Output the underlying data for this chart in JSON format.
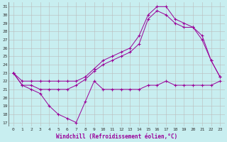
{
  "xlabel": "Windchill (Refroidissement éolien,°C)",
  "bg_color": "#c8eef0",
  "line_color": "#990099",
  "grid_color": "#bbbbbb",
  "xlim": [
    -0.5,
    23.5
  ],
  "ylim": [
    16.5,
    31.5
  ],
  "xticks": [
    0,
    1,
    2,
    3,
    4,
    5,
    6,
    7,
    8,
    9,
    10,
    11,
    12,
    13,
    14,
    15,
    16,
    17,
    18,
    19,
    20,
    21,
    22,
    23
  ],
  "yticks": [
    17,
    18,
    19,
    20,
    21,
    22,
    23,
    24,
    25,
    26,
    27,
    28,
    29,
    30,
    31
  ],
  "line1_x": [
    0,
    1,
    2,
    3,
    4,
    5,
    6,
    7,
    8,
    9,
    10,
    11,
    12,
    13,
    14,
    15,
    16,
    17,
    18,
    19,
    20,
    21,
    22,
    23
  ],
  "line1_y": [
    23,
    21.5,
    21,
    20.5,
    19,
    18,
    17.5,
    17,
    19.5,
    22,
    21,
    21,
    21,
    21,
    21,
    21.5,
    21.5,
    22,
    21.5,
    21.5,
    21.5,
    21.5,
    21.5,
    22
  ],
  "line2_x": [
    0,
    1,
    2,
    3,
    4,
    5,
    6,
    7,
    8,
    9,
    10,
    11,
    12,
    13,
    14,
    15,
    16,
    17,
    18,
    19,
    20,
    21,
    22,
    23
  ],
  "line2_y": [
    23,
    21.5,
    21.5,
    21,
    21,
    21,
    21,
    21.5,
    22.2,
    23.2,
    24,
    24.5,
    25,
    25.5,
    26.5,
    29.5,
    30.5,
    30,
    29,
    28.5,
    28.5,
    27,
    24.5,
    22.5
  ],
  "line3_x": [
    0,
    1,
    2,
    3,
    4,
    5,
    6,
    7,
    8,
    9,
    10,
    11,
    12,
    13,
    14,
    15,
    16,
    17,
    18,
    19,
    20,
    21,
    22,
    23
  ],
  "line3_y": [
    23,
    22,
    22,
    22,
    22,
    22,
    22,
    22,
    22.5,
    23.5,
    24.5,
    25,
    25.5,
    26,
    27.5,
    30,
    31,
    31,
    29.5,
    29,
    28.5,
    27.5,
    24.5,
    22.5
  ]
}
